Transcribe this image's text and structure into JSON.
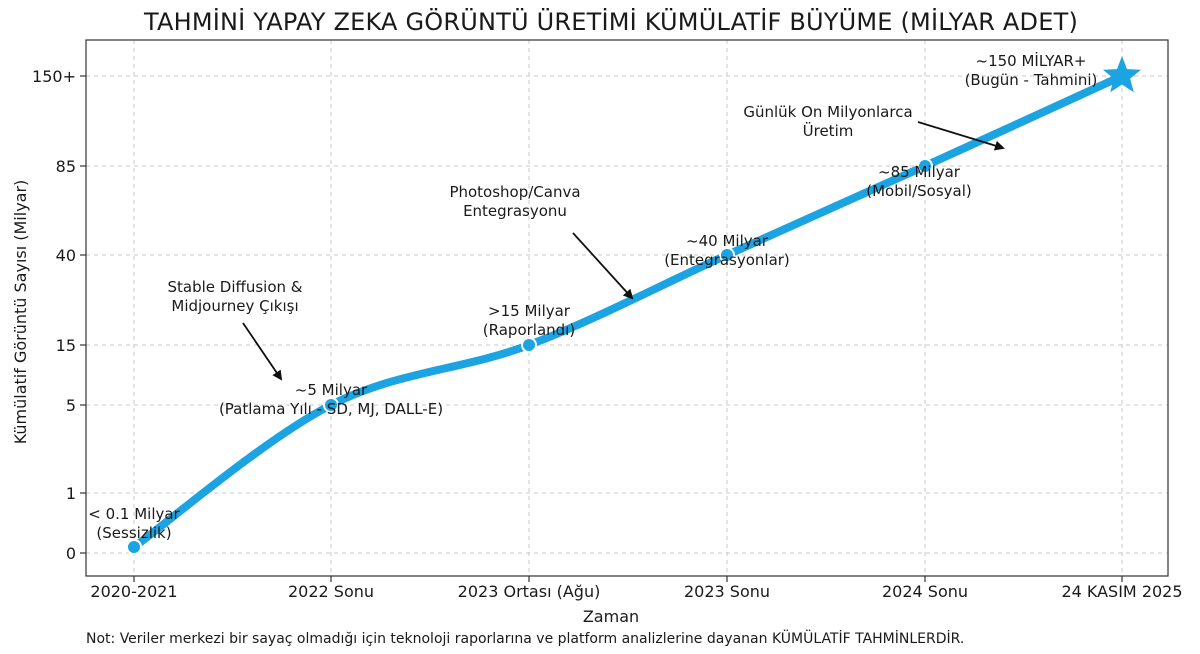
{
  "chart_data": {
    "type": "line",
    "title": "TAHMİNİ YAPAY ZEKA GÖRÜNTÜ ÜRETİMİ KÜMÜLATİF BÜYÜME (MİLYAR ADET)",
    "xlabel": "Zaman",
    "ylabel": "Kümülatif Görüntü Sayısı (Milyar)",
    "categories": [
      "2020-2021",
      "2022 Sonu",
      "2023 Ortası (Ağu)",
      "2023 Sonu",
      "2024 Sonu",
      "24 KASIM 2025"
    ],
    "y_tick_labels": [
      "0",
      "1",
      "5",
      "15",
      "40",
      "85",
      "150+"
    ],
    "y_tick_values": [
      0,
      1,
      5,
      15,
      40,
      85,
      150
    ],
    "y_scale": "non-linear (ordinal tick spacing)",
    "grid": true,
    "series": [
      {
        "color": "#1ba3e2",
        "values": [
          0.1,
          5,
          15,
          40,
          85,
          150
        ]
      }
    ],
    "point_labels": [
      [
        "< 0.1 Milyar",
        "(Sessizlik)"
      ],
      [
        "~5 Milyar",
        "(Patlama Yılı - SD, MJ, DALL-E)"
      ],
      [
        ">15 Milyar",
        "(Raporlandı)"
      ],
      [
        "~40 Milyar",
        "(Entegrasyonlar)"
      ],
      [
        "~85 Milyar",
        "(Mobil/Sosyal)"
      ],
      [
        "~150 MİLYAR+",
        "(Bugün - Tahmini)"
      ]
    ],
    "annotations": [
      [
        "Stable Diffusion &",
        "Midjourney Çıkışı"
      ],
      [
        "Photoshop/Canva",
        "Entegrasyonu"
      ],
      [
        "Günlük On Milyonlarca",
        "Üretim"
      ]
    ],
    "last_point_marker": "star"
  },
  "footnote": "Not: Veriler merkezi bir sayaç olmadığı için teknoloji raporlarına ve platform analizlerine dayanan KÜMÜLATİF TAHMİNLERDİR."
}
